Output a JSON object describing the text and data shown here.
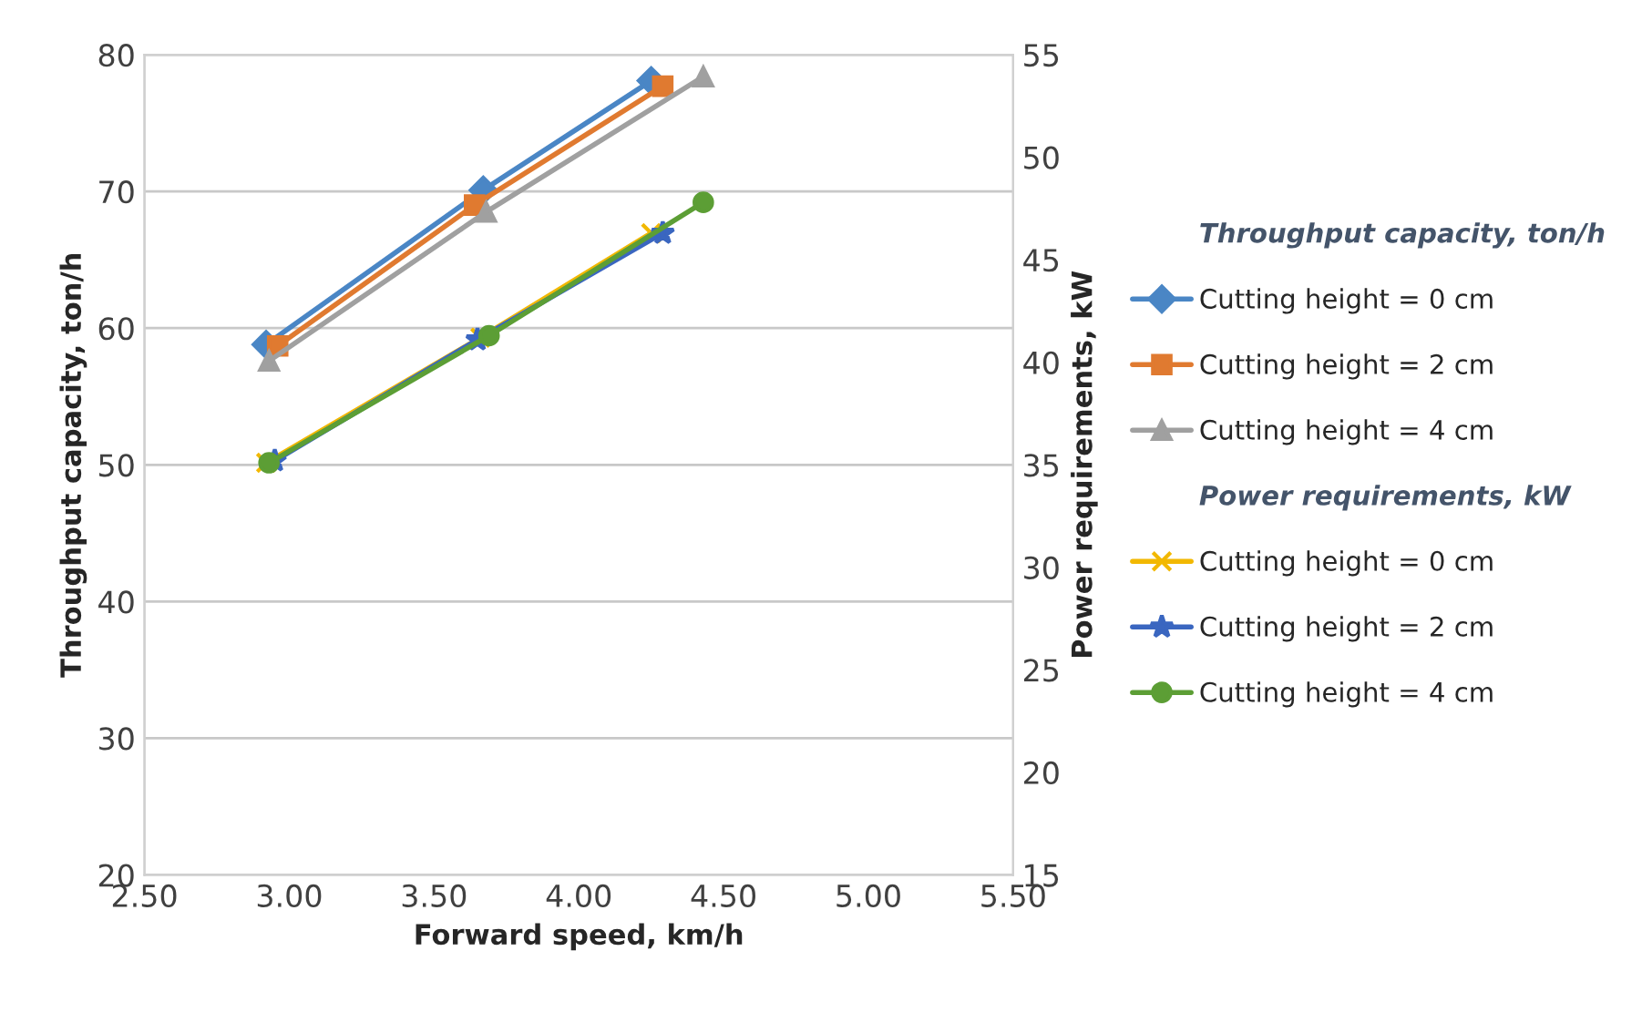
{
  "chart_data": {
    "type": "line",
    "xlabel": "Forward speed, km/h",
    "ylabel": "Throughput capacity, ton/h",
    "y2label": "Power requirements, kW",
    "xlim": [
      2.5,
      5.5
    ],
    "xticks": [
      {
        "value": 2.5,
        "label": "2.50"
      },
      {
        "value": 3.0,
        "label": "3.00"
      },
      {
        "value": 3.5,
        "label": "3.50"
      },
      {
        "value": 4.0,
        "label": "4.00"
      },
      {
        "value": 4.5,
        "label": "4.50"
      },
      {
        "value": 5.0,
        "label": "5.00"
      },
      {
        "value": 5.5,
        "label": "5.50"
      }
    ],
    "ylim": [
      20,
      80
    ],
    "yticks": [
      20,
      30,
      40,
      50,
      60,
      70,
      80
    ],
    "y2lim": [
      15,
      55
    ],
    "y2ticks": [
      15,
      20,
      25,
      30,
      35,
      40,
      45,
      50,
      55
    ],
    "grid": "y",
    "legend": "right",
    "annotations": [
      "Throughput capacity, ton/h",
      "Power requirements, kW"
    ],
    "series": [
      {
        "name": "Cutting height = 0 cm",
        "color": "#4a86c5",
        "marker": "diamond",
        "x": [
          2.92,
          3.67,
          4.25
        ],
        "values": [
          58.8,
          70.1,
          78.1
        ]
      },
      {
        "name": "Cutting height = 2 cm",
        "color": "#e07a30",
        "marker": "square",
        "x": [
          2.96,
          3.64,
          4.29
        ],
        "values": [
          58.7,
          69.0,
          77.7
        ]
      },
      {
        "name": "Cutting height = 4 cm",
        "color": "#a0a0a0",
        "marker": "triangle",
        "x": [
          2.93,
          3.68,
          4.43
        ],
        "values": [
          57.6,
          68.5,
          78.4
        ]
      },
      {
        "name": "Cutting height = 0 cm",
        "color": "#f2b800",
        "marker": "cross",
        "axis": "y2",
        "x": [
          2.92,
          3.66,
          4.25
        ],
        "values": [
          35.1,
          41.2,
          46.3
        ]
      },
      {
        "name": "Cutting height = 2 cm",
        "color": "#3a66c0",
        "marker": "star",
        "axis": "y2",
        "x": [
          2.95,
          3.65,
          4.29
        ],
        "values": [
          35.2,
          41.1,
          46.3
        ]
      },
      {
        "name": "Cutting height = 4 cm",
        "color": "#5c9e35",
        "marker": "circle",
        "axis": "y2",
        "x": [
          2.93,
          3.69,
          4.43
        ],
        "values": [
          35.1,
          41.3,
          47.8
        ]
      }
    ]
  }
}
